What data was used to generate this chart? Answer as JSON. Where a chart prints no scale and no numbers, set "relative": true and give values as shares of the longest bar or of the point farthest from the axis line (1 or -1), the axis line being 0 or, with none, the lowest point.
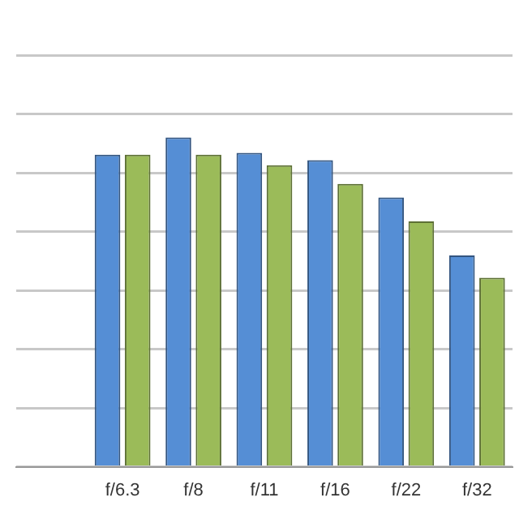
{
  "chart_data": {
    "type": "bar",
    "relative": true,
    "grid": "y",
    "categories": [
      null,
      "f/6.3",
      "f/8",
      "f/11",
      "f/16",
      "f/22",
      "f/32"
    ],
    "series": [
      {
        "color": "#558ed5",
        "values": [
          null,
          0.948,
          1,
          0.953,
          0.931,
          0.818,
          0.642
        ]
      },
      {
        "color": "#9bbb59",
        "values": [
          null,
          0.948,
          0.948,
          0.916,
          0.859,
          0.745,
          0.574
        ]
      }
    ]
  }
}
